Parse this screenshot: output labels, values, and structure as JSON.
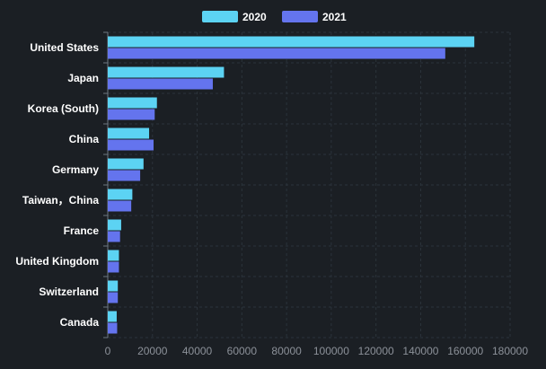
{
  "chart_data": {
    "type": "bar",
    "orientation": "horizontal",
    "categories": [
      "United States",
      "Japan",
      "Korea (South)",
      "China",
      "Germany",
      "Taiwan，China",
      "France",
      "United Kingdom",
      "Switzerland",
      "Canada"
    ],
    "series": [
      {
        "name": "2020",
        "color": "#5cd3f3",
        "values": [
          164000,
          52000,
          22000,
          18500,
          16000,
          11000,
          6000,
          5000,
          4500,
          4000
        ]
      },
      {
        "name": "2021",
        "color": "#6474ee",
        "values": [
          151000,
          47000,
          21000,
          20500,
          14500,
          10500,
          5500,
          5000,
          4500,
          4200
        ]
      }
    ],
    "xlim": [
      0,
      180000
    ],
    "xticks": [
      "0",
      "20000",
      "40000",
      "60000",
      "80000",
      "100000",
      "120000",
      "140000",
      "160000",
      "180000"
    ],
    "grid": true,
    "legend_position": "top"
  }
}
